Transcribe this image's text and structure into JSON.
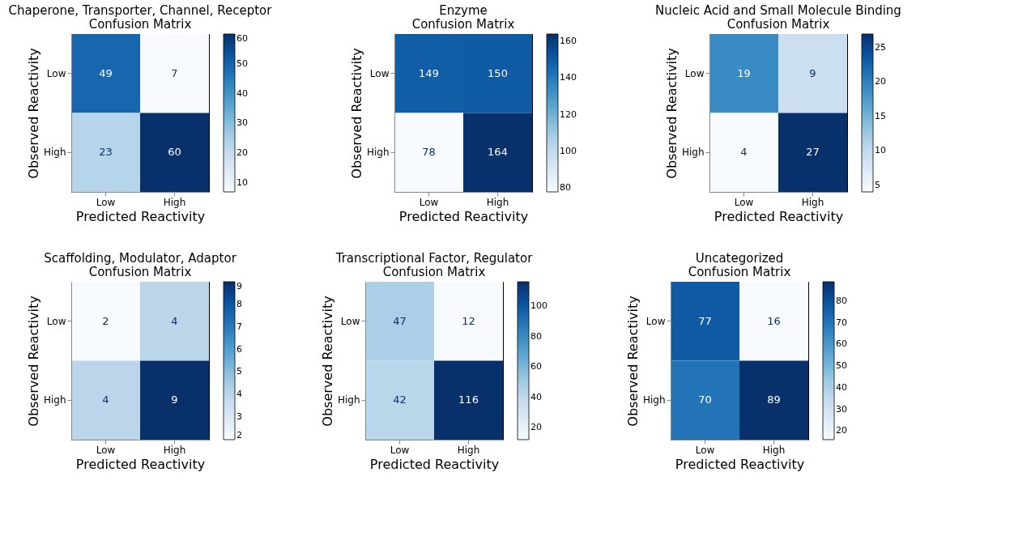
{
  "chart_data": [
    {
      "type": "heatmap",
      "title": "Chaperone, Transporter, Channel, Receptor\nConfusion Matrix",
      "xlabel": "Predicted Reactivity",
      "ylabel": "Observed Reactivity",
      "categories": [
        "Low",
        "High"
      ],
      "y_categories": [
        "Low",
        "High"
      ],
      "cells": [
        [
          49,
          7
        ],
        [
          23,
          60
        ]
      ],
      "clim": [
        7,
        60
      ],
      "cticks": [
        10,
        20,
        30,
        40,
        50,
        60
      ],
      "data_labels": true
    },
    {
      "type": "heatmap",
      "title": "Enzyme\nConfusion Matrix",
      "xlabel": "Predicted Reactivity",
      "ylabel": "Observed Reactivity",
      "categories": [
        "Low",
        "High"
      ],
      "y_categories": [
        "Low",
        "High"
      ],
      "cells": [
        [
          149,
          150
        ],
        [
          78,
          164
        ]
      ],
      "clim": [
        78,
        164
      ],
      "cticks": [
        80,
        100,
        120,
        140,
        160
      ],
      "data_labels": true
    },
    {
      "type": "heatmap",
      "title": "Nucleic Acid and Small Molecule Binding\nConfusion Matrix",
      "xlabel": "Predicted Reactivity",
      "ylabel": "Observed Reactivity",
      "categories": [
        "Low",
        "High"
      ],
      "y_categories": [
        "Low",
        "High"
      ],
      "cells": [
        [
          19,
          9
        ],
        [
          4,
          27
        ]
      ],
      "clim": [
        4,
        27
      ],
      "cticks": [
        5,
        10,
        15,
        20,
        25
      ],
      "data_labels": true
    },
    {
      "type": "heatmap",
      "title": "Scaffolding, Modulator, Adaptor\nConfusion Matrix",
      "xlabel": "Predicted Reactivity",
      "ylabel": "Observed Reactivity",
      "categories": [
        "Low",
        "High"
      ],
      "y_categories": [
        "Low",
        "High"
      ],
      "cells": [
        [
          2,
          4
        ],
        [
          4,
          9
        ]
      ],
      "clim": [
        2,
        9
      ],
      "cticks": [
        2,
        3,
        4,
        5,
        6,
        7,
        8,
        9
      ],
      "data_labels": true
    },
    {
      "type": "heatmap",
      "title": "Transcriptional Factor, Regulator\nConfusion Matrix",
      "xlabel": "Predicted Reactivity",
      "ylabel": "Observed Reactivity",
      "categories": [
        "Low",
        "High"
      ],
      "y_categories": [
        "Low",
        "High"
      ],
      "cells": [
        [
          47,
          12
        ],
        [
          42,
          116
        ]
      ],
      "clim": [
        12,
        116
      ],
      "cticks": [
        20,
        40,
        60,
        80,
        100
      ],
      "data_labels": true
    },
    {
      "type": "heatmap",
      "title": "Uncategorized\nConfusion Matrix",
      "xlabel": "Predicted Reactivity",
      "ylabel": "Observed Reactivity",
      "categories": [
        "Low",
        "High"
      ],
      "y_categories": [
        "Low",
        "High"
      ],
      "cells": [
        [
          77,
          16
        ],
        [
          70,
          89
        ]
      ],
      "clim": [
        16,
        89
      ],
      "cticks": [
        20,
        30,
        40,
        50,
        60,
        70,
        80
      ],
      "data_labels": true
    }
  ]
}
